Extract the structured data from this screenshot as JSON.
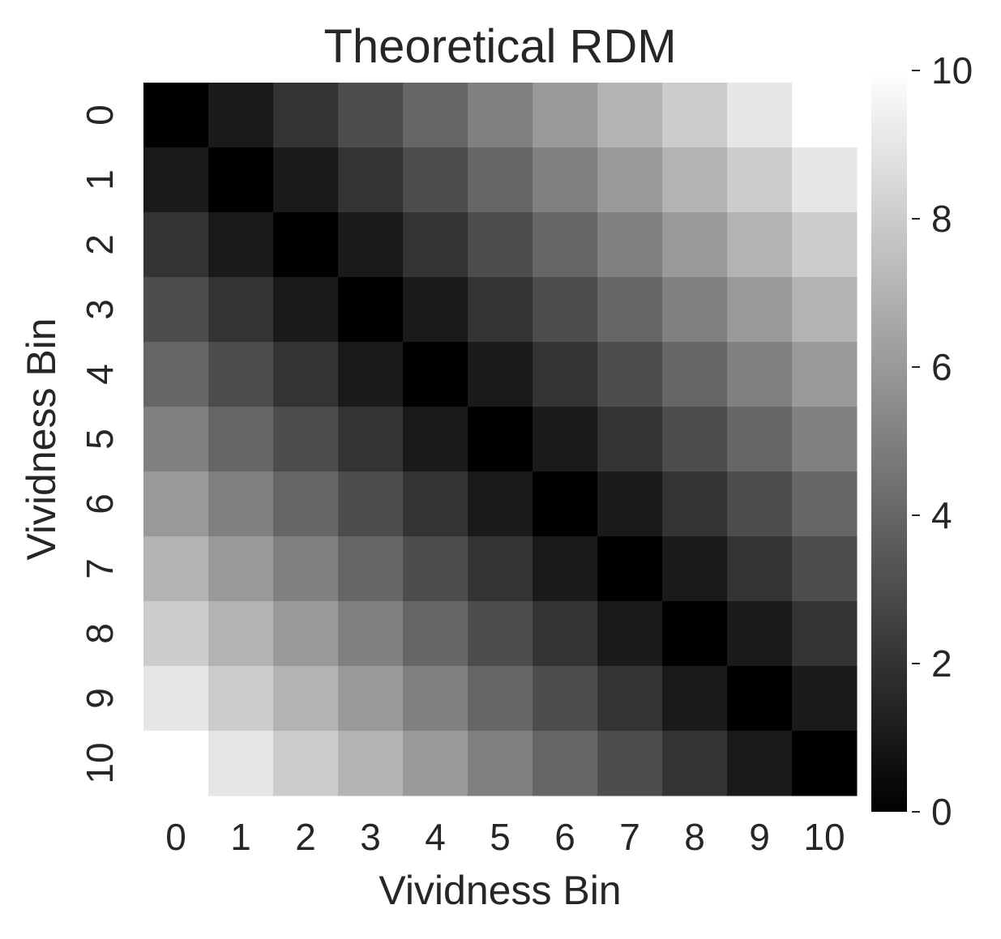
{
  "chart_data": {
    "type": "heatmap",
    "title": "Theoretical RDM",
    "xlabel": "Vividness Bin",
    "ylabel": "Vividness Bin",
    "x_categories": [
      "0",
      "1",
      "2",
      "3",
      "4",
      "5",
      "6",
      "7",
      "8",
      "9",
      "10"
    ],
    "y_categories": [
      "0",
      "1",
      "2",
      "3",
      "4",
      "5",
      "6",
      "7",
      "8",
      "9",
      "10"
    ],
    "values": [
      [
        0,
        1,
        2,
        3,
        4,
        5,
        6,
        7,
        8,
        9,
        10
      ],
      [
        1,
        0,
        1,
        2,
        3,
        4,
        5,
        6,
        7,
        8,
        9
      ],
      [
        2,
        1,
        0,
        1,
        2,
        3,
        4,
        5,
        6,
        7,
        8
      ],
      [
        3,
        2,
        1,
        0,
        1,
        2,
        3,
        4,
        5,
        6,
        7
      ],
      [
        4,
        3,
        2,
        1,
        0,
        1,
        2,
        3,
        4,
        5,
        6
      ],
      [
        5,
        4,
        3,
        2,
        1,
        0,
        1,
        2,
        3,
        4,
        5
      ],
      [
        6,
        5,
        4,
        3,
        2,
        1,
        0,
        1,
        2,
        3,
        4
      ],
      [
        7,
        6,
        5,
        4,
        3,
        2,
        1,
        0,
        1,
        2,
        3
      ],
      [
        8,
        7,
        6,
        5,
        4,
        3,
        2,
        1,
        0,
        1,
        2
      ],
      [
        9,
        8,
        7,
        6,
        5,
        4,
        3,
        2,
        1,
        0,
        1
      ],
      [
        10,
        9,
        8,
        7,
        6,
        5,
        4,
        3,
        2,
        1,
        0
      ]
    ],
    "colormap": "grayscale (black = 0, white = 10)",
    "colorbar": {
      "range": [
        0,
        10
      ],
      "ticks": [
        0,
        2,
        4,
        6,
        8,
        10
      ],
      "tick_labels": [
        "0",
        "2",
        "4",
        "6",
        "8",
        "10"
      ]
    }
  }
}
